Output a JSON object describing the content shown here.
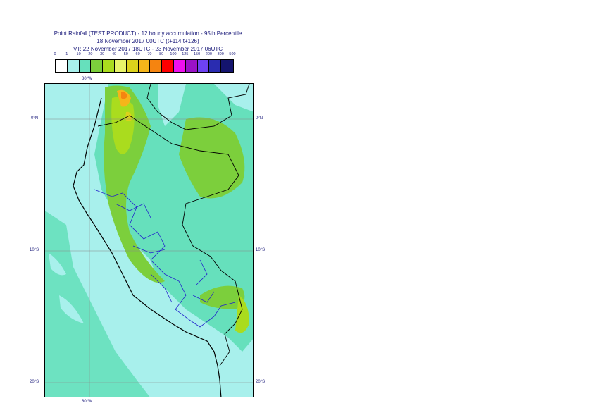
{
  "title": {
    "line1": "Point Rainfall (TEST PRODUCT) - 12 hourly accumulation - 95th Percentile",
    "line2": "18 November 2017 00UTC (t+114,t+126)",
    "line3": "VT: 22 November 2017 18UTC - 23 November 2017 06UTC"
  },
  "legend": {
    "levels": [
      "0",
      "1",
      "10",
      "20",
      "30",
      "40",
      "50",
      "60",
      "70",
      "80",
      "100",
      "125",
      "150",
      "200",
      "300",
      "500"
    ],
    "colors": [
      "#ffffff",
      "#a8f0ec",
      "#66e0bc",
      "#7ccf3c",
      "#aadc1e",
      "#e8f46a",
      "#dcd21c",
      "#f5b51a",
      "#f58410",
      "#ff0000",
      "#ee10ee",
      "#9a12c6",
      "#6e42f2",
      "#2a2cb0",
      "#14146e"
    ]
  },
  "map": {
    "top_lon_label": "80°W",
    "bottom_lon_label": "80°W",
    "lat_labels": {
      "north0": "0°N",
      "south10": "10°S",
      "south20": "20°S"
    }
  }
}
